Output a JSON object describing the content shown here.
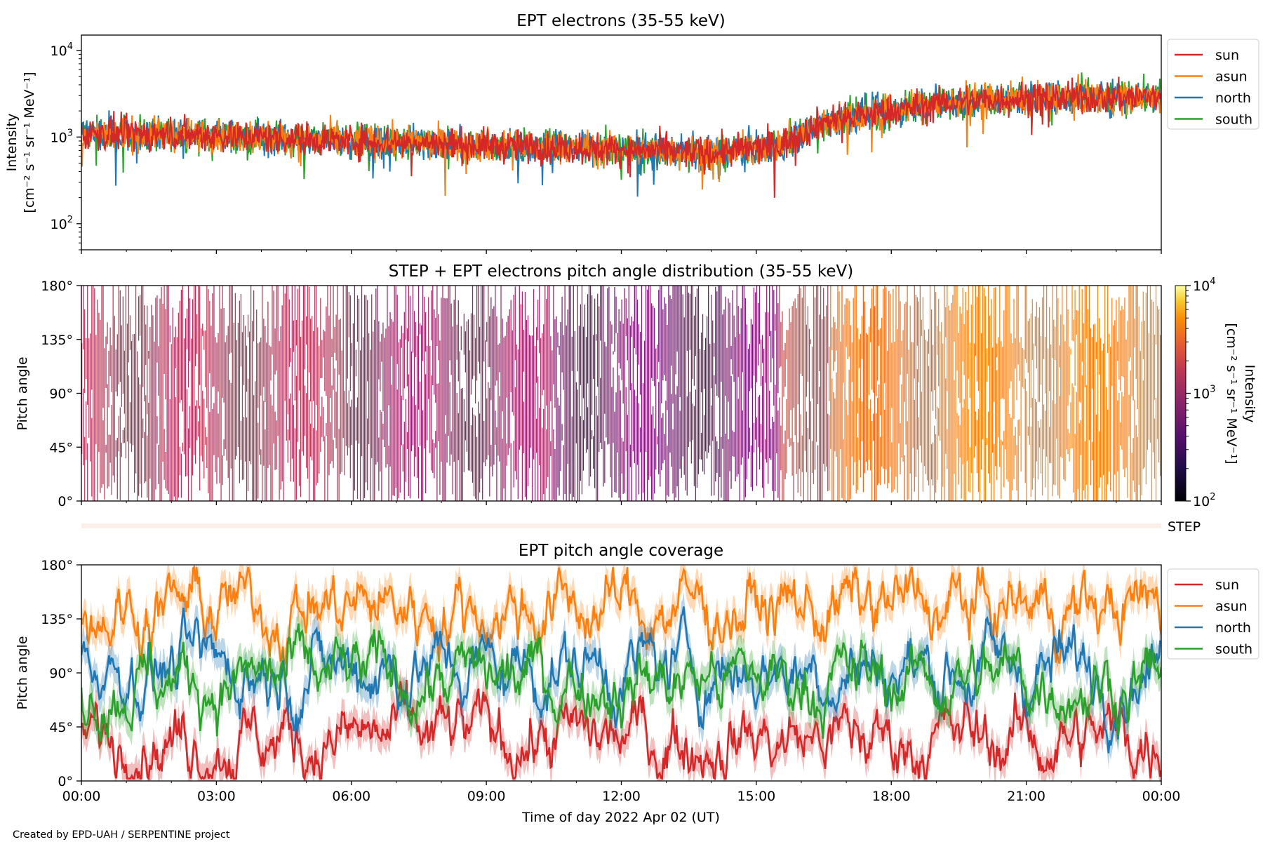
{
  "colors": {
    "sun": "#d62728",
    "asun": "#ff7f0e",
    "north": "#1f77b4",
    "south": "#2ca02c",
    "step_bar": "#fdf0ea"
  },
  "credit": "Created by EPD-UAH / SERPENTINE project",
  "step_label": "STEP",
  "chart_data": [
    {
      "type": "line",
      "title": "EPT electrons (35-55 keV)",
      "ylabel_line1": "Intensity",
      "ylabel_line2": "[cm⁻² s⁻¹ sr⁻¹ MeV⁻¹]",
      "yscale": "log",
      "ylim": [
        50,
        15000
      ],
      "xlim": [
        0,
        24
      ],
      "ytick_labels": [
        {
          "value": 100,
          "base": "10",
          "exp": "2"
        },
        {
          "value": 1000,
          "base": "10",
          "exp": "3"
        },
        {
          "value": 10000,
          "base": "10",
          "exp": "4"
        }
      ],
      "legend": [
        "sun",
        "asun",
        "north",
        "south"
      ],
      "legend_position": "outside-right",
      "series_trend": [
        {
          "hour": 0,
          "value": 1100
        },
        {
          "hour": 3,
          "value": 1050
        },
        {
          "hour": 6,
          "value": 900
        },
        {
          "hour": 9,
          "value": 800
        },
        {
          "hour": 12,
          "value": 720
        },
        {
          "hour": 14,
          "value": 650
        },
        {
          "hour": 15.5,
          "value": 800
        },
        {
          "hour": 16.5,
          "value": 1500
        },
        {
          "hour": 18,
          "value": 2000
        },
        {
          "hour": 19.5,
          "value": 2600
        },
        {
          "hour": 21,
          "value": 2800
        },
        {
          "hour": 24,
          "value": 2900
        }
      ]
    },
    {
      "type": "heatmap",
      "title": "STEP + EPT electrons pitch angle distribution (35-55 keV)",
      "ylabel": "Pitch angle",
      "ylim": [
        0,
        180
      ],
      "ytick_labels": [
        "0°",
        "45°",
        "90°",
        "135°",
        "180°"
      ],
      "xlim": [
        0,
        24
      ],
      "colorbar": {
        "label_line1": "Intensity",
        "label_line2": "[cm⁻² s⁻¹ sr⁻¹ MeV⁻¹]",
        "scale": "log",
        "range": [
          100,
          10000
        ],
        "tick_labels": [
          {
            "value": 100,
            "base": "10",
            "exp": "2"
          },
          {
            "value": 1000,
            "base": "10",
            "exp": "3"
          },
          {
            "value": 10000,
            "base": "10",
            "exp": "4"
          }
        ],
        "colormap": "inferno"
      }
    },
    {
      "type": "line",
      "title": "EPT pitch angle coverage",
      "ylabel": "Pitch angle",
      "ylim": [
        0,
        180
      ],
      "ytick_labels": [
        "0°",
        "45°",
        "90°",
        "135°",
        "180°"
      ],
      "xlim": [
        0,
        24
      ],
      "xlabel": "Time of day 2022 Apr 02 (UT)",
      "xtick_labels": [
        "00:00",
        "03:00",
        "06:00",
        "09:00",
        "12:00",
        "15:00",
        "18:00",
        "21:00",
        "00:00"
      ],
      "legend": [
        "sun",
        "asun",
        "north",
        "south"
      ],
      "legend_position": "outside-right",
      "series_mean": [
        {
          "name": "sun",
          "value": 35
        },
        {
          "name": "asun",
          "value": 145
        },
        {
          "name": "north",
          "value": 95
        },
        {
          "name": "south",
          "value": 85
        }
      ]
    }
  ]
}
